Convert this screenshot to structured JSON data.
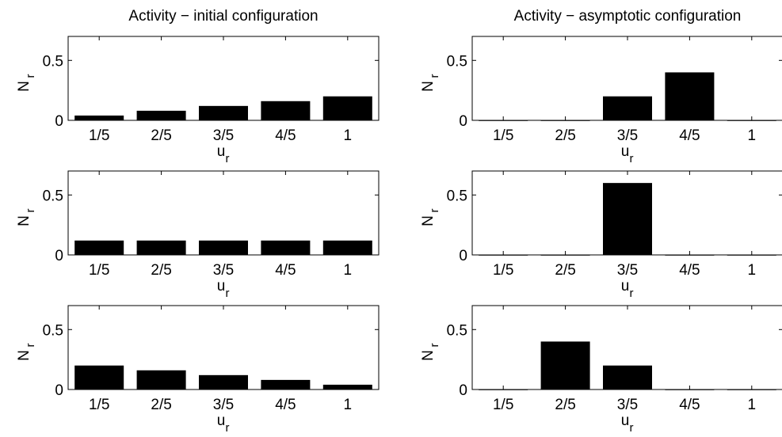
{
  "chart_data": [
    {
      "type": "bar",
      "title": "Activity − initial configuration",
      "xlabel": "u",
      "xlabel_sub": "r",
      "ylabel": "N",
      "ylabel_sub": "r",
      "categories": [
        "1/5",
        "2/5",
        "3/5",
        "4/5",
        "1"
      ],
      "values": [
        0.04,
        0.08,
        0.12,
        0.16,
        0.2
      ],
      "ylim": [
        0,
        0.7
      ],
      "yticks": [
        0,
        0.5
      ],
      "ytick_labels": [
        "0",
        "0.5"
      ],
      "bar_color": "#000000",
      "grid": false
    },
    {
      "type": "bar",
      "title": "Activity − asymptotic configuration",
      "xlabel": "u",
      "xlabel_sub": "r",
      "ylabel": "N",
      "ylabel_sub": "r",
      "categories": [
        "1/5",
        "2/5",
        "3/5",
        "4/5",
        "1"
      ],
      "values": [
        0,
        0,
        0.2,
        0.4,
        0
      ],
      "ylim": [
        0,
        0.7
      ],
      "yticks": [
        0,
        0.5
      ],
      "ytick_labels": [
        "0",
        "0.5"
      ],
      "bar_color": "#000000",
      "grid": false
    },
    {
      "type": "bar",
      "title": "",
      "xlabel": "u",
      "xlabel_sub": "r",
      "ylabel": "N",
      "ylabel_sub": "r",
      "categories": [
        "1/5",
        "2/5",
        "3/5",
        "4/5",
        "1"
      ],
      "values": [
        0.12,
        0.12,
        0.12,
        0.12,
        0.12
      ],
      "ylim": [
        0,
        0.7
      ],
      "yticks": [
        0,
        0.5
      ],
      "ytick_labels": [
        "0",
        "0.5"
      ],
      "bar_color": "#000000",
      "grid": false
    },
    {
      "type": "bar",
      "title": "",
      "xlabel": "u",
      "xlabel_sub": "r",
      "ylabel": "N",
      "ylabel_sub": "r",
      "categories": [
        "1/5",
        "2/5",
        "3/5",
        "4/5",
        "1"
      ],
      "values": [
        0,
        0,
        0.6,
        0,
        0
      ],
      "ylim": [
        0,
        0.7
      ],
      "yticks": [
        0,
        0.5
      ],
      "ytick_labels": [
        "0",
        "0.5"
      ],
      "bar_color": "#000000",
      "grid": false
    },
    {
      "type": "bar",
      "title": "",
      "xlabel": "u",
      "xlabel_sub": "r",
      "ylabel": "N",
      "ylabel_sub": "r",
      "categories": [
        "1/5",
        "2/5",
        "3/5",
        "4/5",
        "1"
      ],
      "values": [
        0.2,
        0.16,
        0.12,
        0.08,
        0.04
      ],
      "ylim": [
        0,
        0.7
      ],
      "yticks": [
        0,
        0.5
      ],
      "ytick_labels": [
        "0",
        "0.5"
      ],
      "bar_color": "#000000",
      "grid": false
    },
    {
      "type": "bar",
      "title": "",
      "xlabel": "u",
      "xlabel_sub": "r",
      "ylabel": "N",
      "ylabel_sub": "r",
      "categories": [
        "1/5",
        "2/5",
        "3/5",
        "4/5",
        "1"
      ],
      "values": [
        0,
        0.4,
        0.2,
        0,
        0
      ],
      "ylim": [
        0,
        0.7
      ],
      "yticks": [
        0,
        0.5
      ],
      "ytick_labels": [
        "0",
        "0.5"
      ],
      "bar_color": "#000000",
      "grid": false
    }
  ]
}
